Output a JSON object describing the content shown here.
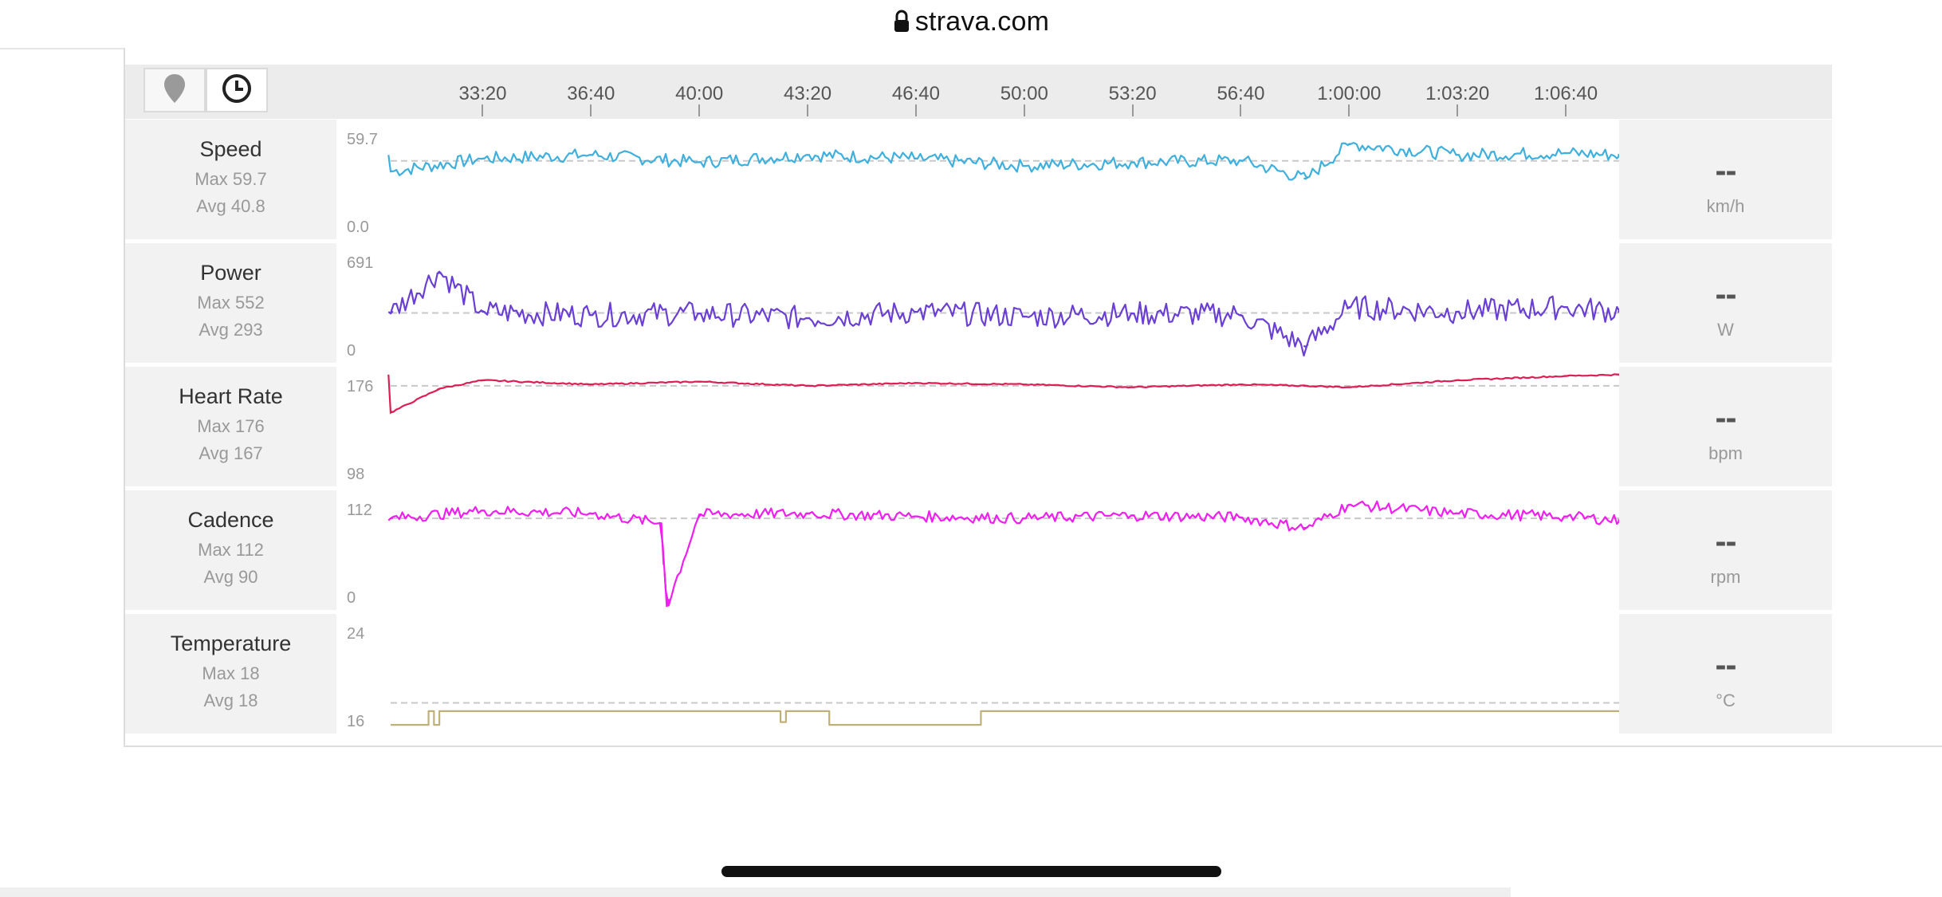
{
  "browser": {
    "url": "strava.com"
  },
  "toolbar": {
    "icons": [
      "map-pin-icon",
      "clock-icon"
    ]
  },
  "x_axis": {
    "ticks": [
      "33:20",
      "36:40",
      "40:00",
      "43:20",
      "46:40",
      "50:00",
      "53:20",
      "56:40",
      "1:00:00",
      "1:03:20",
      "1:06:40"
    ]
  },
  "colors": {
    "speed": "#3fb0de",
    "power": "#6a3fd4",
    "heart_rate": "#dc1e55",
    "cadence": "#f01ef0",
    "temperature": "#bfb07a",
    "avg_line": "#c8c8c8"
  },
  "rows": [
    {
      "name": "Speed",
      "max": "Max 59.7",
      "avg": "Avg 40.8",
      "y_max": "59.7",
      "y_min": "0.0",
      "value": "--",
      "unit": "km/h"
    },
    {
      "name": "Power",
      "max": "Max 552",
      "avg": "Avg 293",
      "y_max": "691",
      "y_min": "0",
      "value": "--",
      "unit": "W"
    },
    {
      "name": "Heart Rate",
      "max": "Max 176",
      "avg": "Avg 167",
      "y_max": "176",
      "y_min": "98",
      "value": "--",
      "unit": "bpm"
    },
    {
      "name": "Cadence",
      "max": "Max 112",
      "avg": "Avg 90",
      "y_max": "112",
      "y_min": "0",
      "value": "--",
      "unit": "rpm"
    },
    {
      "name": "Temperature",
      "max": "Max 18",
      "avg": "Avg 18",
      "y_max": "24",
      "y_min": "16",
      "value": "--",
      "unit": "°C"
    }
  ],
  "chart_data": [
    {
      "type": "line",
      "title": "Speed",
      "unit": "km/h",
      "ylim": [
        0,
        59.7
      ],
      "avg": 40.8,
      "max": 59.7,
      "x": [
        "30:30",
        "33:20",
        "36:40",
        "40:00",
        "43:20",
        "46:40",
        "50:00",
        "53:20",
        "56:40",
        "58:40",
        "1:00:00",
        "1:03:20",
        "1:06:40",
        "1:08:20"
      ],
      "values": [
        35,
        42,
        44,
        40,
        44,
        42,
        38,
        40,
        41,
        31,
        50,
        44,
        45,
        44
      ]
    },
    {
      "type": "line",
      "title": "Power",
      "unit": "W",
      "ylim": [
        0,
        691
      ],
      "avg": 293,
      "max": 552,
      "x": [
        "30:30",
        "32:00",
        "33:20",
        "36:40",
        "40:00",
        "43:20",
        "46:40",
        "50:00",
        "53:20",
        "56:40",
        "58:40",
        "1:00:00",
        "1:03:20",
        "1:06:40",
        "1:08:20"
      ],
      "values": [
        290,
        552,
        300,
        280,
        290,
        260,
        300,
        270,
        290,
        280,
        80,
        330,
        300,
        330,
        300
      ]
    },
    {
      "type": "line",
      "title": "Heart Rate",
      "unit": "bpm",
      "ylim": [
        98,
        176
      ],
      "avg": 167,
      "max": 176,
      "x": [
        "30:30",
        "32:00",
        "33:20",
        "36:40",
        "40:00",
        "43:20",
        "46:40",
        "50:00",
        "53:20",
        "56:40",
        "58:40",
        "1:00:00",
        "1:03:20",
        "1:06:40",
        "1:08:20"
      ],
      "values": [
        148,
        165,
        171,
        168,
        170,
        167,
        169,
        168,
        166,
        168,
        167,
        166,
        171,
        174,
        175
      ]
    },
    {
      "type": "line",
      "title": "Cadence",
      "unit": "rpm",
      "ylim": [
        0,
        112
      ],
      "avg": 90,
      "max": 112,
      "x": [
        "30:30",
        "33:20",
        "36:40",
        "38:50",
        "39:00",
        "40:00",
        "43:20",
        "46:40",
        "50:00",
        "53:20",
        "56:40",
        "58:40",
        "1:00:00",
        "1:03:20",
        "1:06:40",
        "1:08:20"
      ],
      "values": [
        90,
        98,
        95,
        85,
        0,
        94,
        95,
        92,
        90,
        93,
        91,
        80,
        104,
        95,
        92,
        88
      ]
    },
    {
      "type": "line",
      "title": "Temperature",
      "unit": "°C",
      "ylim": [
        16,
        24
      ],
      "avg": 18,
      "max": 18,
      "x": [
        "30:30",
        "31:40",
        "31:50",
        "32:00",
        "40:00",
        "42:30",
        "42:40",
        "43:20",
        "44:00",
        "48:40",
        "1:08:20"
      ],
      "values": [
        16.4,
        17.4,
        16.4,
        17.4,
        17.4,
        16.6,
        17.4,
        17.4,
        16.4,
        17.4,
        17.4
      ]
    }
  ]
}
